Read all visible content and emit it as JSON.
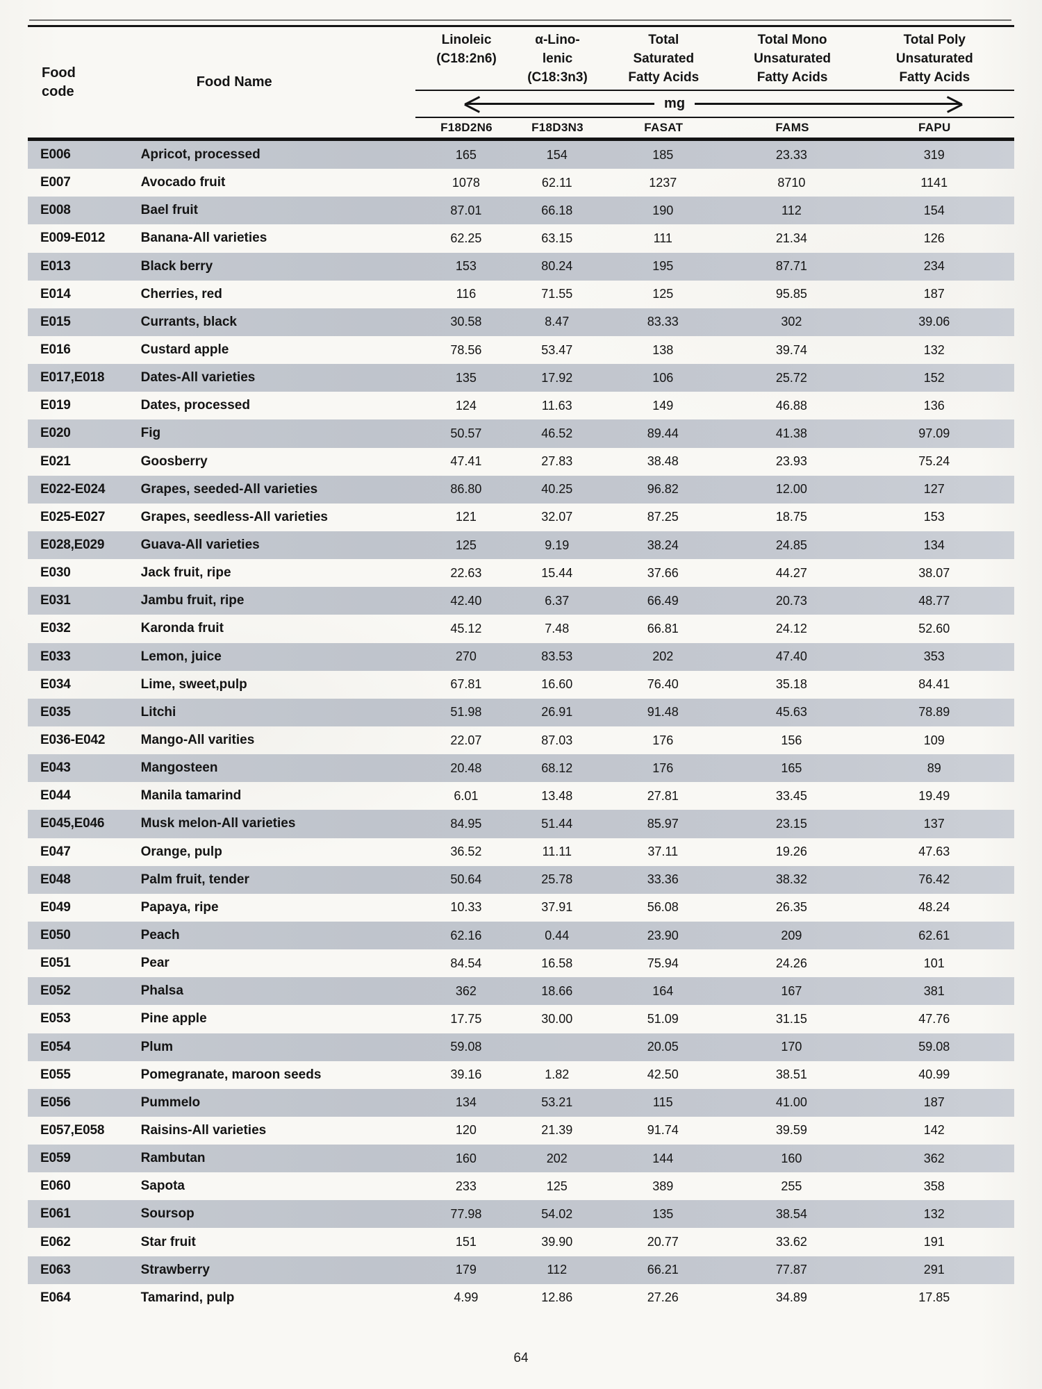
{
  "table": {
    "unit_label": "mg",
    "columns": {
      "food_code": {
        "lines": [
          "Food",
          "code"
        ]
      },
      "food_name": {
        "label": "Food Name"
      },
      "numeric": [
        {
          "lines": [
            "Linoleic",
            "(C18:2n6)",
            ""
          ],
          "code": "F18D2N6"
        },
        {
          "lines": [
            "α-Lino-",
            "lenic",
            "(C18:3n3)"
          ],
          "code": "F18D3N3"
        },
        {
          "lines": [
            "Total",
            "Saturated",
            "Fatty Acids"
          ],
          "code": "FASAT"
        },
        {
          "lines": [
            "Total Mono",
            "Unsaturated",
            "Fatty Acids"
          ],
          "code": "FAMS"
        },
        {
          "lines": [
            "Total Poly",
            "Unsaturated",
            "Fatty Acids"
          ],
          "code": "FAPU"
        }
      ]
    },
    "rows": [
      {
        "code": "E006",
        "name": "Apricot, processed",
        "values": [
          "165",
          "154",
          "185",
          "23.33",
          "319"
        ]
      },
      {
        "code": "E007",
        "name": "Avocado fruit",
        "values": [
          "1078",
          "62.11",
          "1237",
          "8710",
          "1141"
        ]
      },
      {
        "code": "E008",
        "name": "Bael fruit",
        "values": [
          "87.01",
          "66.18",
          "190",
          "112",
          "154"
        ]
      },
      {
        "code": "E009-E012",
        "name": "Banana-All varieties",
        "values": [
          "62.25",
          "63.15",
          "111",
          "21.34",
          "126"
        ]
      },
      {
        "code": "E013",
        "name": "Black berry",
        "values": [
          "153",
          "80.24",
          "195",
          "87.71",
          "234"
        ]
      },
      {
        "code": "E014",
        "name": "Cherries, red",
        "values": [
          "116",
          "71.55",
          "125",
          "95.85",
          "187"
        ]
      },
      {
        "code": "E015",
        "name": "Currants, black",
        "values": [
          "30.58",
          "8.47",
          "83.33",
          "302",
          "39.06"
        ]
      },
      {
        "code": "E016",
        "name": "Custard apple",
        "values": [
          "78.56",
          "53.47",
          "138",
          "39.74",
          "132"
        ]
      },
      {
        "code": "E017,E018",
        "name": "Dates-All varieties",
        "values": [
          "135",
          "17.92",
          "106",
          "25.72",
          "152"
        ]
      },
      {
        "code": "E019",
        "name": "Dates, processed",
        "values": [
          "124",
          "11.63",
          "149",
          "46.88",
          "136"
        ]
      },
      {
        "code": "E020",
        "name": "Fig",
        "values": [
          "50.57",
          "46.52",
          "89.44",
          "41.38",
          "97.09"
        ]
      },
      {
        "code": "E021",
        "name": "Goosberry",
        "values": [
          "47.41",
          "27.83",
          "38.48",
          "23.93",
          "75.24"
        ]
      },
      {
        "code": "E022-E024",
        "name": "Grapes, seeded-All varieties",
        "values": [
          "86.80",
          "40.25",
          "96.82",
          "12.00",
          "127"
        ]
      },
      {
        "code": "E025-E027",
        "name": "Grapes, seedless-All varieties",
        "values": [
          "121",
          "32.07",
          "87.25",
          "18.75",
          "153"
        ]
      },
      {
        "code": "E028,E029",
        "name": "Guava-All varieties",
        "values": [
          "125",
          "9.19",
          "38.24",
          "24.85",
          "134"
        ]
      },
      {
        "code": "E030",
        "name": "Jack fruit, ripe",
        "values": [
          "22.63",
          "15.44",
          "37.66",
          "44.27",
          "38.07"
        ]
      },
      {
        "code": "E031",
        "name": "Jambu fruit, ripe",
        "values": [
          "42.40",
          "6.37",
          "66.49",
          "20.73",
          "48.77"
        ]
      },
      {
        "code": "E032",
        "name": "Karonda fruit",
        "values": [
          "45.12",
          "7.48",
          "66.81",
          "24.12",
          "52.60"
        ]
      },
      {
        "code": "E033",
        "name": "Lemon, juice",
        "values": [
          "270",
          "83.53",
          "202",
          "47.40",
          "353"
        ]
      },
      {
        "code": "E034",
        "name": "Lime, sweet,pulp",
        "values": [
          "67.81",
          "16.60",
          "76.40",
          "35.18",
          "84.41"
        ]
      },
      {
        "code": "E035",
        "name": "Litchi",
        "values": [
          "51.98",
          "26.91",
          "91.48",
          "45.63",
          "78.89"
        ]
      },
      {
        "code": "E036-E042",
        "name": "Mango-All varities",
        "values": [
          "22.07",
          "87.03",
          "176",
          "156",
          "109"
        ]
      },
      {
        "code": "E043",
        "name": "Mangosteen",
        "values": [
          "20.48",
          "68.12",
          "176",
          "165",
          "89"
        ]
      },
      {
        "code": "E044",
        "name": "Manila tamarind",
        "values": [
          "6.01",
          "13.48",
          "27.81",
          "33.45",
          "19.49"
        ]
      },
      {
        "code": "E045,E046",
        "name": "Musk melon-All varieties",
        "values": [
          "84.95",
          "51.44",
          "85.97",
          "23.15",
          "137"
        ]
      },
      {
        "code": "E047",
        "name": "Orange, pulp",
        "values": [
          "36.52",
          "11.11",
          "37.11",
          "19.26",
          "47.63"
        ]
      },
      {
        "code": "E048",
        "name": "Palm fruit, tender",
        "values": [
          "50.64",
          "25.78",
          "33.36",
          "38.32",
          "76.42"
        ]
      },
      {
        "code": "E049",
        "name": "Papaya, ripe",
        "values": [
          "10.33",
          "37.91",
          "56.08",
          "26.35",
          "48.24"
        ]
      },
      {
        "code": "E050",
        "name": "Peach",
        "values": [
          "62.16",
          "0.44",
          "23.90",
          "209",
          "62.61"
        ]
      },
      {
        "code": "E051",
        "name": "Pear",
        "values": [
          "84.54",
          "16.58",
          "75.94",
          "24.26",
          "101"
        ]
      },
      {
        "code": "E052",
        "name": "Phalsa",
        "values": [
          "362",
          "18.66",
          "164",
          "167",
          "381"
        ]
      },
      {
        "code": "E053",
        "name": "Pine apple",
        "values": [
          "17.75",
          "30.00",
          "51.09",
          "31.15",
          "47.76"
        ]
      },
      {
        "code": "E054",
        "name": "Plum",
        "values": [
          "59.08",
          "",
          "20.05",
          "170",
          "59.08"
        ]
      },
      {
        "code": "E055",
        "name": "Pomegranate, maroon seeds",
        "values": [
          "39.16",
          "1.82",
          "42.50",
          "38.51",
          "40.99"
        ]
      },
      {
        "code": "E056",
        "name": "Pummelo",
        "values": [
          "134",
          "53.21",
          "115",
          "41.00",
          "187"
        ]
      },
      {
        "code": "E057,E058",
        "name": "Raisins-All varieties",
        "values": [
          "120",
          "21.39",
          "91.74",
          "39.59",
          "142"
        ]
      },
      {
        "code": "E059",
        "name": "Rambutan",
        "values": [
          "160",
          "202",
          "144",
          "160",
          "362"
        ]
      },
      {
        "code": "E060",
        "name": "Sapota",
        "values": [
          "233",
          "125",
          "389",
          "255",
          "358"
        ]
      },
      {
        "code": "E061",
        "name": "Soursop",
        "values": [
          "77.98",
          "54.02",
          "135",
          "38.54",
          "132"
        ]
      },
      {
        "code": "E062",
        "name": "Star fruit",
        "values": [
          "151",
          "39.90",
          "20.77",
          "33.62",
          "191"
        ]
      },
      {
        "code": "E063",
        "name": "Strawberry",
        "values": [
          "179",
          "112",
          "66.21",
          "77.87",
          "291"
        ]
      },
      {
        "code": "E064",
        "name": "Tamarind, pulp",
        "values": [
          "4.99",
          "12.86",
          "27.26",
          "34.89",
          "17.85"
        ]
      }
    ]
  },
  "page_number": "64"
}
